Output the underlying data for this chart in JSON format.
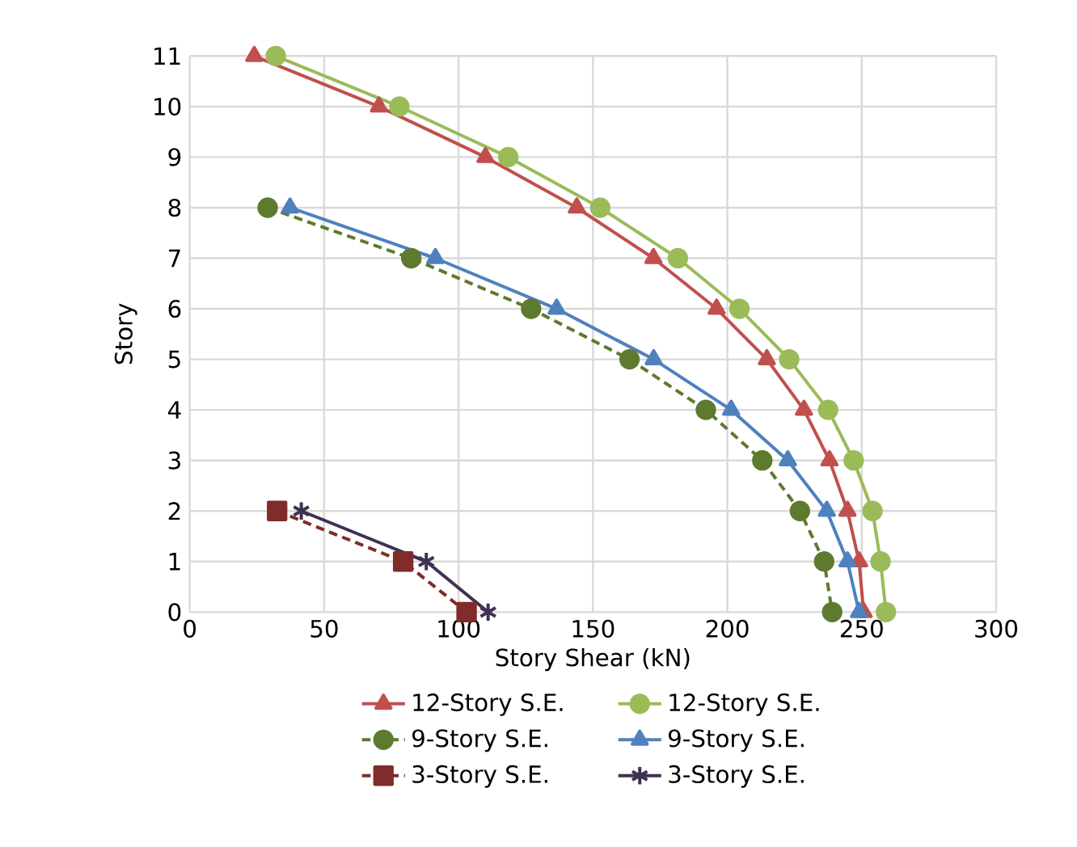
{
  "chart_data": {
    "type": "line",
    "xlabel": "Story Shear (kN)",
    "ylabel": "Story",
    "xlim": [
      0,
      300
    ],
    "xticks": [
      0,
      50,
      100,
      150,
      200,
      250,
      300
    ],
    "ylim": [
      0,
      11
    ],
    "yticks": [
      0,
      1,
      2,
      3,
      4,
      5,
      6,
      7,
      8,
      9,
      10,
      11
    ],
    "grid": true,
    "legend": "bottom",
    "series": [
      {
        "name": "12-Story S.E.",
        "color": "#c0504d",
        "marker": "triangle",
        "line_style": "solid",
        "x": [
          24,
          70.4,
          110,
          144,
          172.5,
          196,
          214.7,
          228.5,
          238,
          244.7,
          249,
          250.7
        ],
        "values": [
          11,
          10,
          9,
          8,
          7,
          6,
          5,
          4,
          3,
          2,
          1,
          0
        ]
      },
      {
        "name": "12-Story S.E.",
        "color": "#9bbb59",
        "marker": "circle",
        "line_style": "solid",
        "x": [
          32,
          78,
          118.5,
          152.7,
          181.6,
          204.5,
          223,
          237.5,
          247,
          254,
          257,
          259
        ],
        "values": [
          11,
          10,
          9,
          8,
          7,
          6,
          5,
          4,
          3,
          2,
          1,
          0
        ]
      },
      {
        "name": "9-Story S.E.",
        "color": "#5e7a2e",
        "marker": "circle",
        "line_style": "dashed",
        "x": [
          29,
          82.4,
          127,
          163.6,
          192,
          213,
          227,
          236,
          239
        ],
        "values": [
          8,
          7,
          6,
          5,
          4,
          3,
          2,
          1,
          0
        ]
      },
      {
        "name": "9-Story S.E.",
        "color": "#4f81bd",
        "marker": "triangle",
        "line_style": "solid",
        "x": [
          37.3,
          91.4,
          136.5,
          172.6,
          201.4,
          222.5,
          237,
          244.7,
          249
        ],
        "values": [
          8,
          7,
          6,
          5,
          4,
          3,
          2,
          1,
          0
        ]
      },
      {
        "name": "3-Story S.E.",
        "color": "#7f2c2a",
        "marker": "square",
        "line_style": "dashed",
        "x": [
          32.5,
          79.4,
          103
        ],
        "values": [
          2,
          1,
          0
        ]
      },
      {
        "name": "3-Story S.E.",
        "color": "#403152",
        "marker": "cross",
        "line_style": "solid",
        "x": [
          41.5,
          88,
          111
        ],
        "values": [
          2,
          1,
          0
        ]
      }
    ]
  }
}
